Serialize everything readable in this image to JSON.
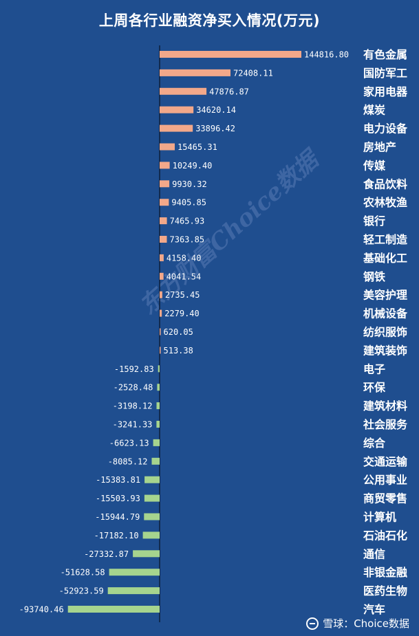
{
  "header": {
    "title": "上周各行业融资净买入情况(万元)"
  },
  "watermark": {
    "text": "东方财富Choice数据"
  },
  "footer": {
    "text": "雪球：Choice数据",
    "logo_icon": "snowball-logo-icon"
  },
  "colors": {
    "background": "#1f4e8f",
    "positive": "#f2a88a",
    "negative": "#a6d48e",
    "text": "#ffffff"
  },
  "chart_data": {
    "type": "bar",
    "orientation": "horizontal",
    "title": "上周各行业融资净买入情况(万元)",
    "unit": "万元",
    "categories": [
      "有色金属",
      "国防军工",
      "家用电器",
      "煤炭",
      "电力设备",
      "房地产",
      "传媒",
      "食品饮料",
      "农林牧渔",
      "银行",
      "轻工制造",
      "基础化工",
      "钢铁",
      "美容护理",
      "机械设备",
      "纺织服饰",
      "建筑装饰",
      "电子",
      "环保",
      "建筑材料",
      "社会服务",
      "综合",
      "交通运输",
      "公用事业",
      "商贸零售",
      "计算机",
      "石油石化",
      "通信",
      "非银金融",
      "医药生物",
      "汽车"
    ],
    "values": [
      144816.8,
      72408.11,
      47876.87,
      34620.14,
      33896.42,
      15465.31,
      10249.4,
      9930.32,
      9405.85,
      7465.93,
      7363.85,
      4158.4,
      4041.54,
      2735.45,
      2279.4,
      620.05,
      513.38,
      -1592.83,
      -2528.48,
      -3198.12,
      -3241.33,
      -6623.13,
      -8085.12,
      -15383.81,
      -15503.93,
      -15944.79,
      -17182.1,
      -27332.87,
      -51628.58,
      -52923.59,
      -93740.46
    ],
    "labels": [
      "144816.80",
      "72408.11",
      "47876.87",
      "34620.14",
      "33896.42",
      "15465.31",
      "10249.40",
      "9930.32",
      "9405.85",
      "7465.93",
      "7363.85",
      "4158.40",
      "4041.54",
      "2735.45",
      "2279.40",
      "620.05",
      "513.38",
      "-1592.83",
      "-2528.48",
      "-3198.12",
      "-3241.33",
      "-6623.13",
      "-8085.12",
      "-15383.81",
      "-15503.93",
      "-15944.79",
      "-17182.10",
      "-27332.87",
      "-51628.58",
      "-52923.59",
      "-93740.46"
    ],
    "grid": false,
    "legend": "none"
  }
}
